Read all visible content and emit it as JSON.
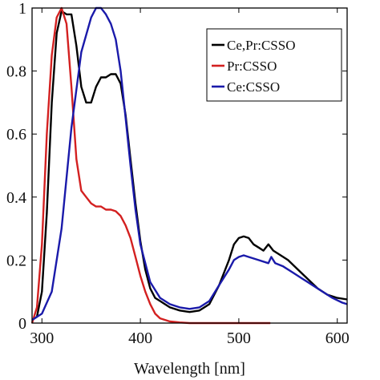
{
  "chart_data": {
    "type": "line",
    "xlabel": "Wavelength [nm]",
    "ylabel": "",
    "xlim": [
      290,
      610
    ],
    "ylim": [
      0,
      1
    ],
    "xticks": [
      300,
      400,
      500,
      600
    ],
    "yticks": [
      0,
      0.2,
      0.4,
      0.6,
      0.8,
      1
    ],
    "xtick_labels": [
      "300",
      "400",
      "500",
      "600"
    ],
    "ytick_labels": [
      "0",
      "0.2",
      "0.4",
      "0.6",
      "0.8",
      "1"
    ],
    "grid": false,
    "legend_position": "top-right",
    "series": [
      {
        "name": "Ce,Pr:CSSO",
        "color": "#000000",
        "points": [
          [
            290,
            0.01
          ],
          [
            295,
            0.02
          ],
          [
            300,
            0.1
          ],
          [
            305,
            0.35
          ],
          [
            310,
            0.7
          ],
          [
            315,
            0.92
          ],
          [
            320,
            0.99
          ],
          [
            325,
            0.98
          ],
          [
            330,
            0.98
          ],
          [
            335,
            0.88
          ],
          [
            340,
            0.75
          ],
          [
            345,
            0.7
          ],
          [
            350,
            0.7
          ],
          [
            355,
            0.75
          ],
          [
            360,
            0.78
          ],
          [
            365,
            0.78
          ],
          [
            370,
            0.79
          ],
          [
            375,
            0.79
          ],
          [
            380,
            0.76
          ],
          [
            385,
            0.66
          ],
          [
            390,
            0.52
          ],
          [
            395,
            0.38
          ],
          [
            400,
            0.26
          ],
          [
            405,
            0.17
          ],
          [
            410,
            0.11
          ],
          [
            415,
            0.08
          ],
          [
            420,
            0.07
          ],
          [
            430,
            0.05
          ],
          [
            440,
            0.04
          ],
          [
            450,
            0.035
          ],
          [
            460,
            0.04
          ],
          [
            470,
            0.06
          ],
          [
            480,
            0.12
          ],
          [
            490,
            0.2
          ],
          [
            495,
            0.25
          ],
          [
            500,
            0.27
          ],
          [
            505,
            0.275
          ],
          [
            510,
            0.27
          ],
          [
            515,
            0.25
          ],
          [
            520,
            0.24
          ],
          [
            525,
            0.23
          ],
          [
            530,
            0.25
          ],
          [
            535,
            0.23
          ],
          [
            540,
            0.22
          ],
          [
            550,
            0.2
          ],
          [
            560,
            0.17
          ],
          [
            570,
            0.14
          ],
          [
            580,
            0.11
          ],
          [
            590,
            0.09
          ],
          [
            600,
            0.08
          ],
          [
            610,
            0.075
          ]
        ]
      },
      {
        "name": "Pr:CSSO",
        "color": "#d32020",
        "points": [
          [
            290,
            0.0
          ],
          [
            295,
            0.05
          ],
          [
            300,
            0.25
          ],
          [
            305,
            0.6
          ],
          [
            310,
            0.85
          ],
          [
            315,
            0.97
          ],
          [
            320,
            1.0
          ],
          [
            325,
            0.95
          ],
          [
            330,
            0.75
          ],
          [
            335,
            0.52
          ],
          [
            340,
            0.42
          ],
          [
            345,
            0.4
          ],
          [
            350,
            0.38
          ],
          [
            355,
            0.37
          ],
          [
            360,
            0.37
          ],
          [
            365,
            0.36
          ],
          [
            370,
            0.36
          ],
          [
            375,
            0.355
          ],
          [
            380,
            0.34
          ],
          [
            385,
            0.31
          ],
          [
            390,
            0.27
          ],
          [
            395,
            0.21
          ],
          [
            400,
            0.15
          ],
          [
            405,
            0.1
          ],
          [
            410,
            0.06
          ],
          [
            415,
            0.03
          ],
          [
            420,
            0.015
          ],
          [
            430,
            0.005
          ],
          [
            440,
            0.002
          ],
          [
            450,
            0.0
          ],
          [
            480,
            0.0
          ],
          [
            510,
            0.0
          ],
          [
            532,
            0.0
          ]
        ]
      },
      {
        "name": "Ce:CSSO",
        "color": "#1a1aaa",
        "points": [
          [
            290,
            0.01
          ],
          [
            300,
            0.03
          ],
          [
            310,
            0.1
          ],
          [
            320,
            0.3
          ],
          [
            330,
            0.62
          ],
          [
            340,
            0.86
          ],
          [
            350,
            0.97
          ],
          [
            355,
            1.0
          ],
          [
            360,
            1.0
          ],
          [
            365,
            0.98
          ],
          [
            370,
            0.95
          ],
          [
            375,
            0.9
          ],
          [
            380,
            0.8
          ],
          [
            385,
            0.65
          ],
          [
            390,
            0.5
          ],
          [
            395,
            0.36
          ],
          [
            400,
            0.25
          ],
          [
            410,
            0.13
          ],
          [
            420,
            0.08
          ],
          [
            430,
            0.06
          ],
          [
            440,
            0.05
          ],
          [
            450,
            0.045
          ],
          [
            460,
            0.05
          ],
          [
            470,
            0.07
          ],
          [
            480,
            0.12
          ],
          [
            490,
            0.17
          ],
          [
            495,
            0.2
          ],
          [
            500,
            0.21
          ],
          [
            505,
            0.215
          ],
          [
            510,
            0.21
          ],
          [
            520,
            0.2
          ],
          [
            530,
            0.19
          ],
          [
            533,
            0.21
          ],
          [
            537,
            0.19
          ],
          [
            545,
            0.18
          ],
          [
            555,
            0.16
          ],
          [
            565,
            0.14
          ],
          [
            575,
            0.12
          ],
          [
            585,
            0.1
          ],
          [
            595,
            0.08
          ],
          [
            605,
            0.065
          ],
          [
            610,
            0.06
          ]
        ]
      }
    ]
  }
}
